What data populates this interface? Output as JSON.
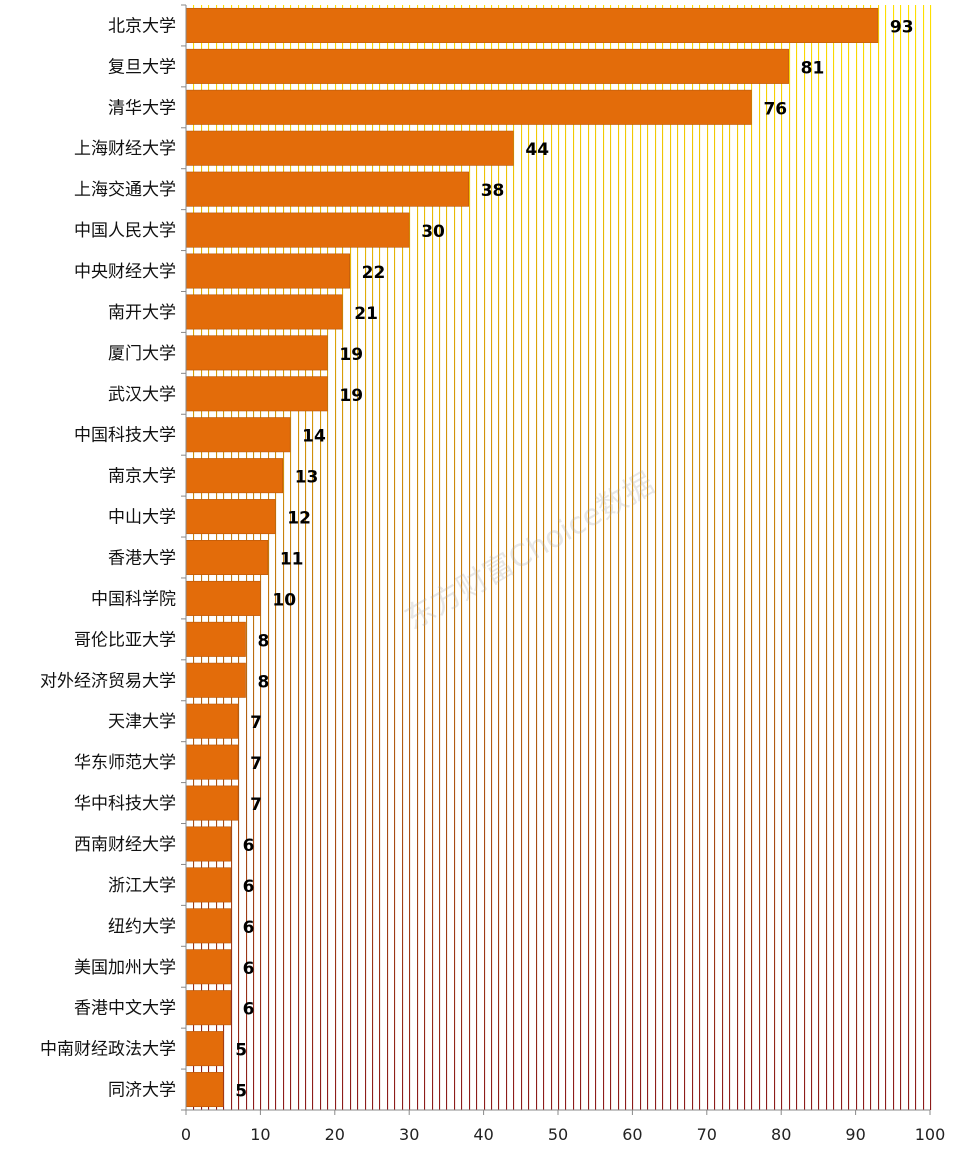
{
  "chart_data": {
    "type": "bar",
    "orientation": "horizontal",
    "categories": [
      "北京大学",
      "复旦大学",
      "清华大学",
      "上海财经大学",
      "上海交通大学",
      "中国人民大学",
      "中央财经大学",
      "南开大学",
      "厦门大学",
      "武汉大学",
      "中国科技大学",
      "南京大学",
      "中山大学",
      "香港大学",
      "中国科学院",
      "哥伦比亚大学",
      "对外经济贸易大学",
      "天津大学",
      "华东师范大学",
      "华中科技大学",
      "西南财经大学",
      "浙江大学",
      "纽约大学",
      "美国加州大学",
      "香港中文大学",
      "中南财经政法大学",
      "同济大学"
    ],
    "values": [
      93,
      81,
      76,
      44,
      38,
      30,
      22,
      21,
      19,
      19,
      14,
      13,
      12,
      11,
      10,
      8,
      8,
      7,
      7,
      7,
      6,
      6,
      6,
      6,
      6,
      5,
      5
    ],
    "xlim": [
      0,
      100
    ],
    "xticks": [
      0,
      10,
      20,
      30,
      40,
      50,
      60,
      70,
      80,
      90,
      100
    ],
    "grid": "vertical lines every 1 unit",
    "colors": {
      "bar": "#E36C0A",
      "bar_edge": "#B85608",
      "grid_top": "#FFE000",
      "grid_bottom": "#8B1A1A",
      "axis": "#888888"
    }
  },
  "watermark": "东方财富Choice数据"
}
